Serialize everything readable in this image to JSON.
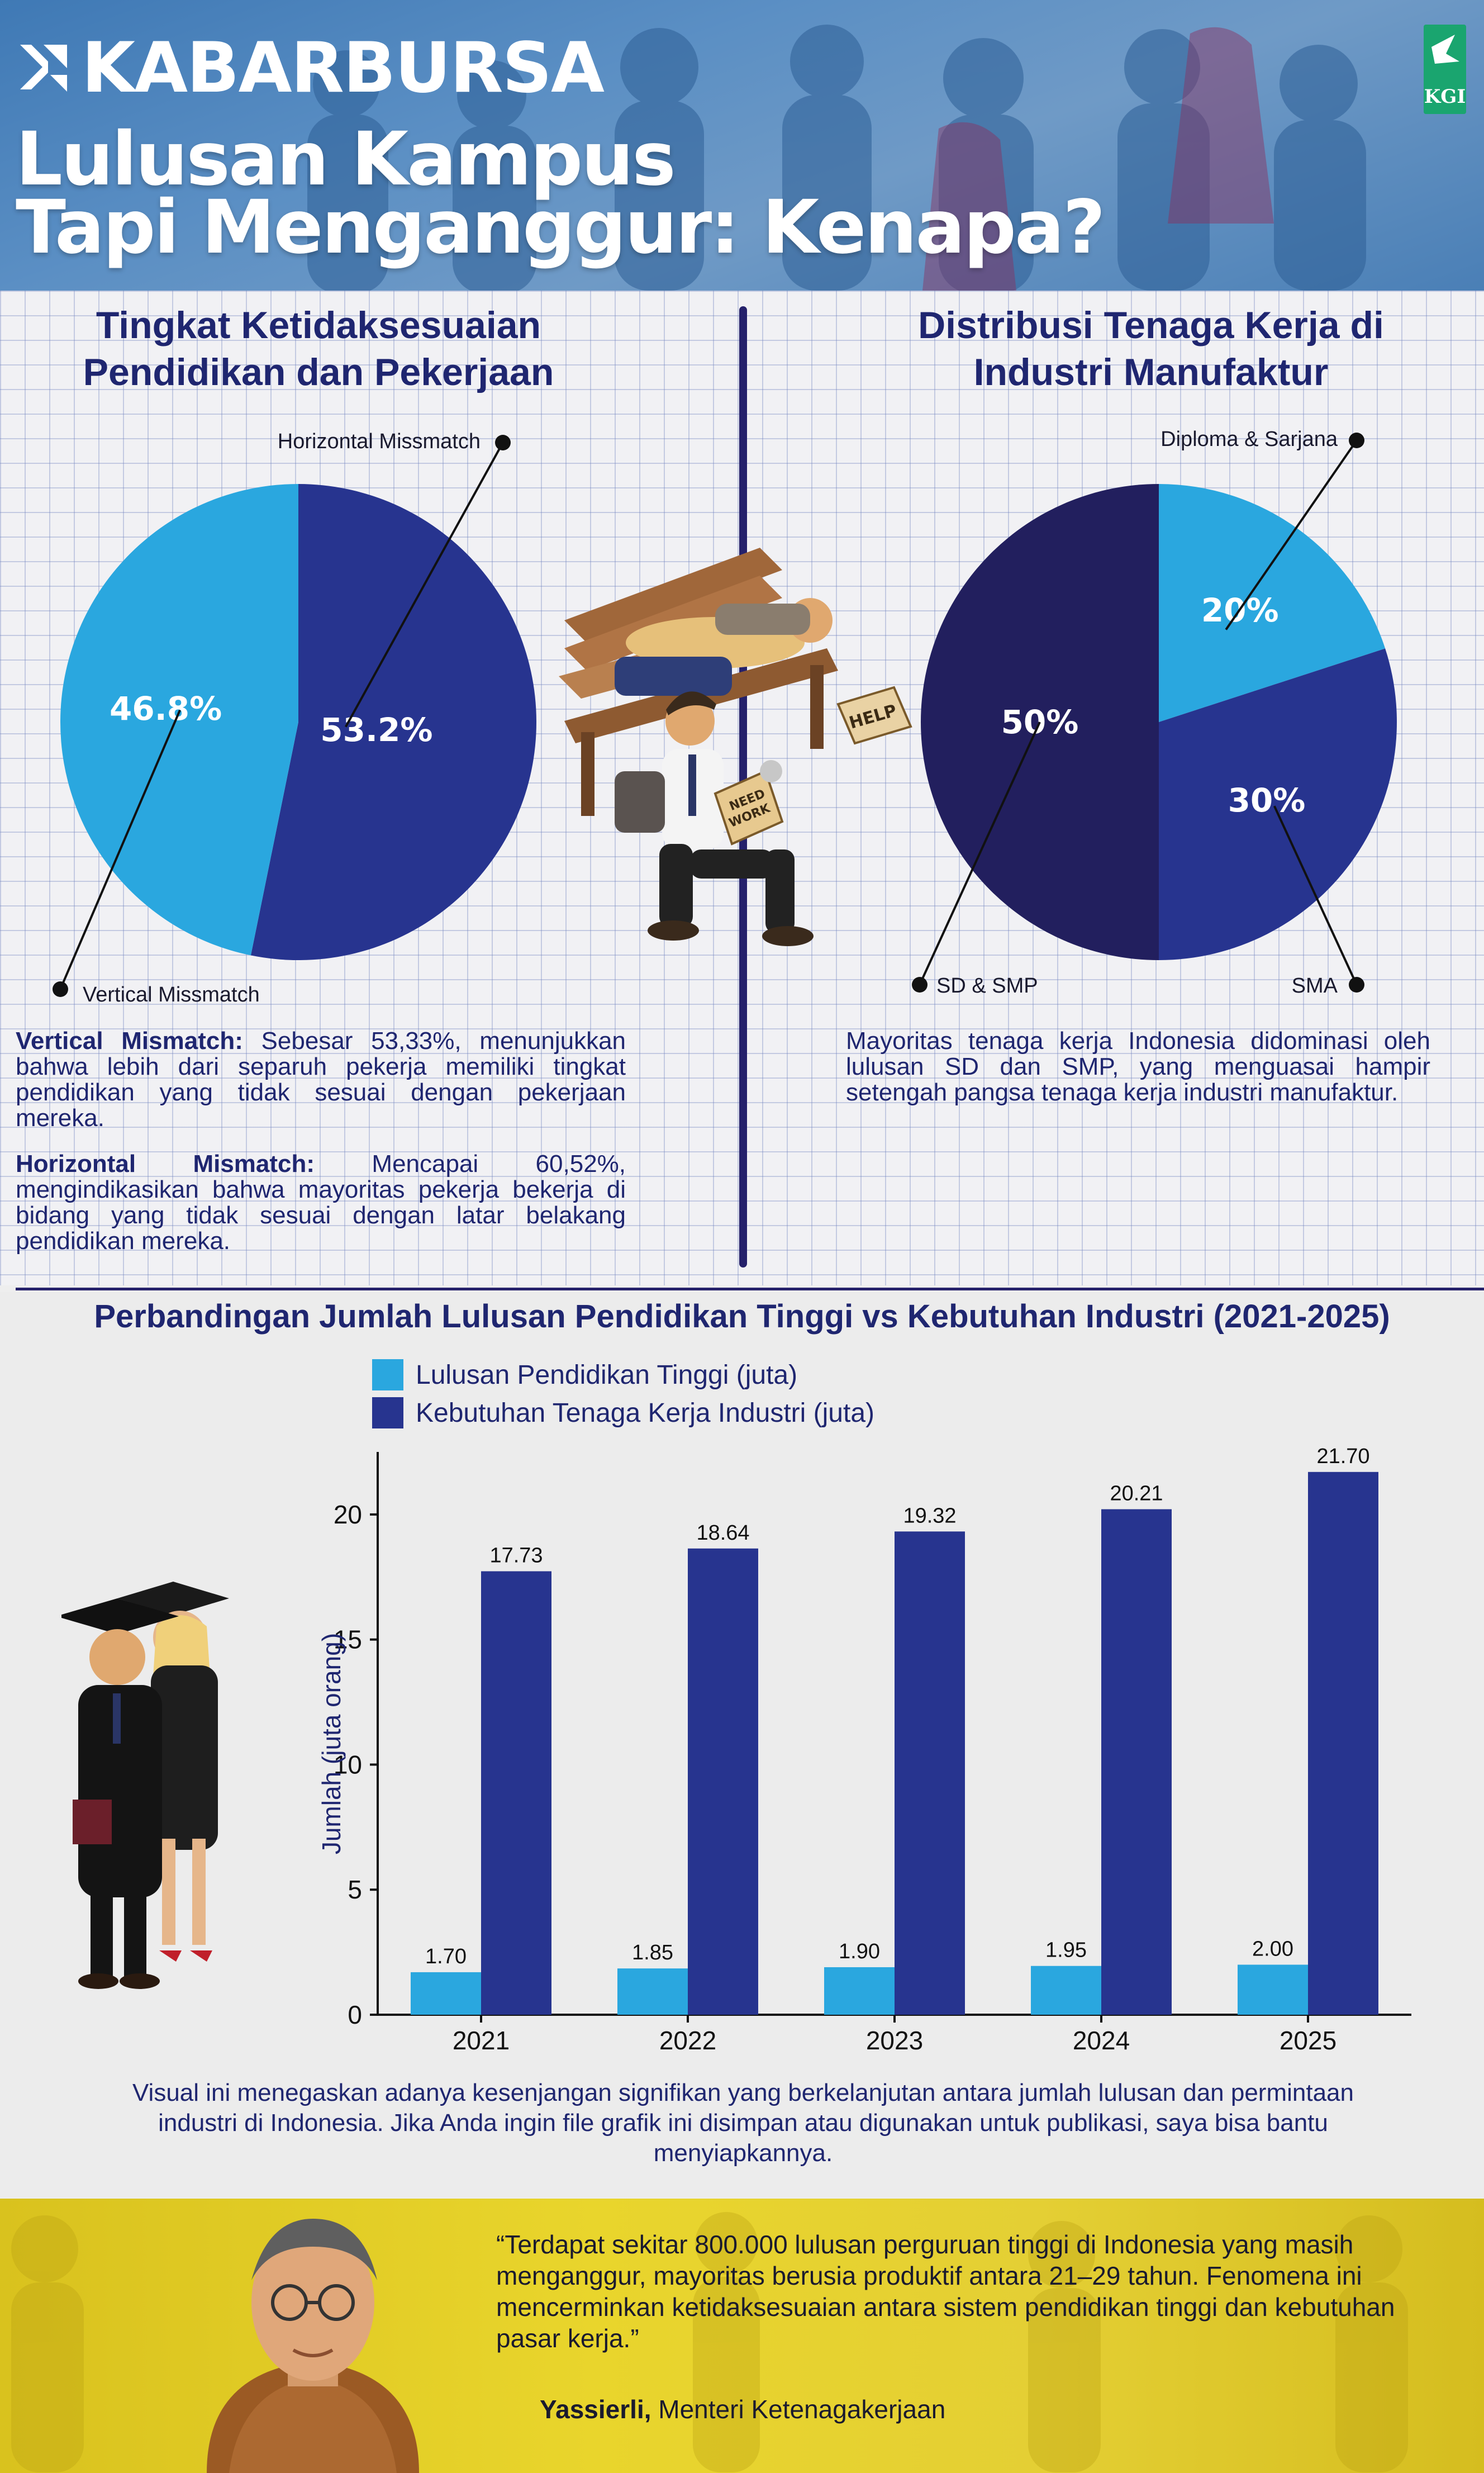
{
  "header": {
    "brand": "KABARBURSA",
    "title_line1": "Lulusan Kampus",
    "title_line2": "Tapi Menganggur: Kenapa?",
    "badge_text": "KGI"
  },
  "colors": {
    "light_blue": "#2aa7df",
    "dark_blue": "#27348f",
    "navy": "#221f5e",
    "text": "#1f2670"
  },
  "chart_data": [
    {
      "type": "pie",
      "title": "Tingkat Ketidaksesuaian Pendidikan dan Pekerjaan",
      "slices": [
        {
          "name": "Horizontal Missmatch",
          "value": 53.2,
          "label": "53.2%",
          "color": "#27348f"
        },
        {
          "name": "Vertical Missmatch",
          "value": 46.8,
          "label": "46.8%",
          "color": "#2aa7df"
        }
      ]
    },
    {
      "type": "pie",
      "title": "Distribusi Tenaga Kerja di Industri Manufaktur",
      "slices": [
        {
          "name": "Diploma & Sarjana",
          "value": 20,
          "label": "20%",
          "color": "#2aa7df"
        },
        {
          "name": "SMA",
          "value": 30,
          "label": "30%",
          "color": "#27348f"
        },
        {
          "name": "SD & SMP",
          "value": 50,
          "label": "50%",
          "color": "#221f5e"
        }
      ]
    },
    {
      "type": "bar",
      "title": "Perbandingan Jumlah Lulusan Pendidikan Tinggi vs Kebutuhan Industri (2021-2025)",
      "categories": [
        "2021",
        "2022",
        "2023",
        "2024",
        "2025"
      ],
      "series": [
        {
          "name": "Lulusan Pendidikan Tinggi (juta)",
          "values": [
            1.7,
            1.85,
            1.9,
            1.95,
            2.0
          ],
          "labels": [
            "1.70",
            "1.85",
            "1.90",
            "1.95",
            "2.00"
          ],
          "color": "#2aa7df"
        },
        {
          "name": "Kebutuhan Tenaga Kerja Industri (juta)",
          "values": [
            17.73,
            18.64,
            19.32,
            20.21,
            21.7
          ],
          "labels": [
            "17.73",
            "18.64",
            "19.32",
            "20.21",
            "21.70"
          ],
          "color": "#27348f"
        }
      ],
      "ylabel": "Jumlah (juta orang)",
      "xlabel": "",
      "ylim": [
        0,
        22.5
      ],
      "yticks": [
        0,
        5,
        10,
        15,
        20
      ],
      "legend": "top-left",
      "grid": false
    }
  ],
  "descriptions": {
    "vertical_label": "Vertical Mismatch:",
    "vertical_text": " Sebesar 53,33%, menunjukkan bahwa lebih dari separuh pekerja memiliki tingkat pendidikan yang tidak sesuai dengan pekerjaan mereka.",
    "horizontal_label": "Horizontal Mismatch:",
    "horizontal_text": " Mencapai 60,52%, mengindikasikan bahwa mayoritas pekerja bekerja di bidang yang tidak sesuai dengan latar belakang pendidikan mereka.",
    "manufaktur_text": "Mayoritas tenaga kerja Indonesia didominasi oleh lulusan SD dan SMP, yang menguasai hampir setengah pangsa tenaga kerja industri manufaktur."
  },
  "illustration": {
    "help_sign": "HELP",
    "need_work_sign_1": "NEED",
    "need_work_sign_2": "WORK"
  },
  "closing_text": "Visual ini menegaskan adanya kesenjangan signifikan yang berkelanjutan antara jumlah lulusan dan permintaan industri di Indonesia. Jika Anda ingin file grafik ini disimpan atau digunakan untuk publikasi, saya bisa bantu menyiapkannya.",
  "quote": {
    "text": "“Terdapat sekitar 800.000 lulusan perguruan tinggi di Indonesia yang masih menganggur, mayoritas berusia produktif antara 21–29 tahun. Fenomena ini mencerminkan ketidaksesuaian antara sistem pendidikan tinggi dan kebutuhan pasar kerja.”",
    "author_name": "Yassierli,",
    "author_role": " Menteri Ketenagakerjaan"
  }
}
